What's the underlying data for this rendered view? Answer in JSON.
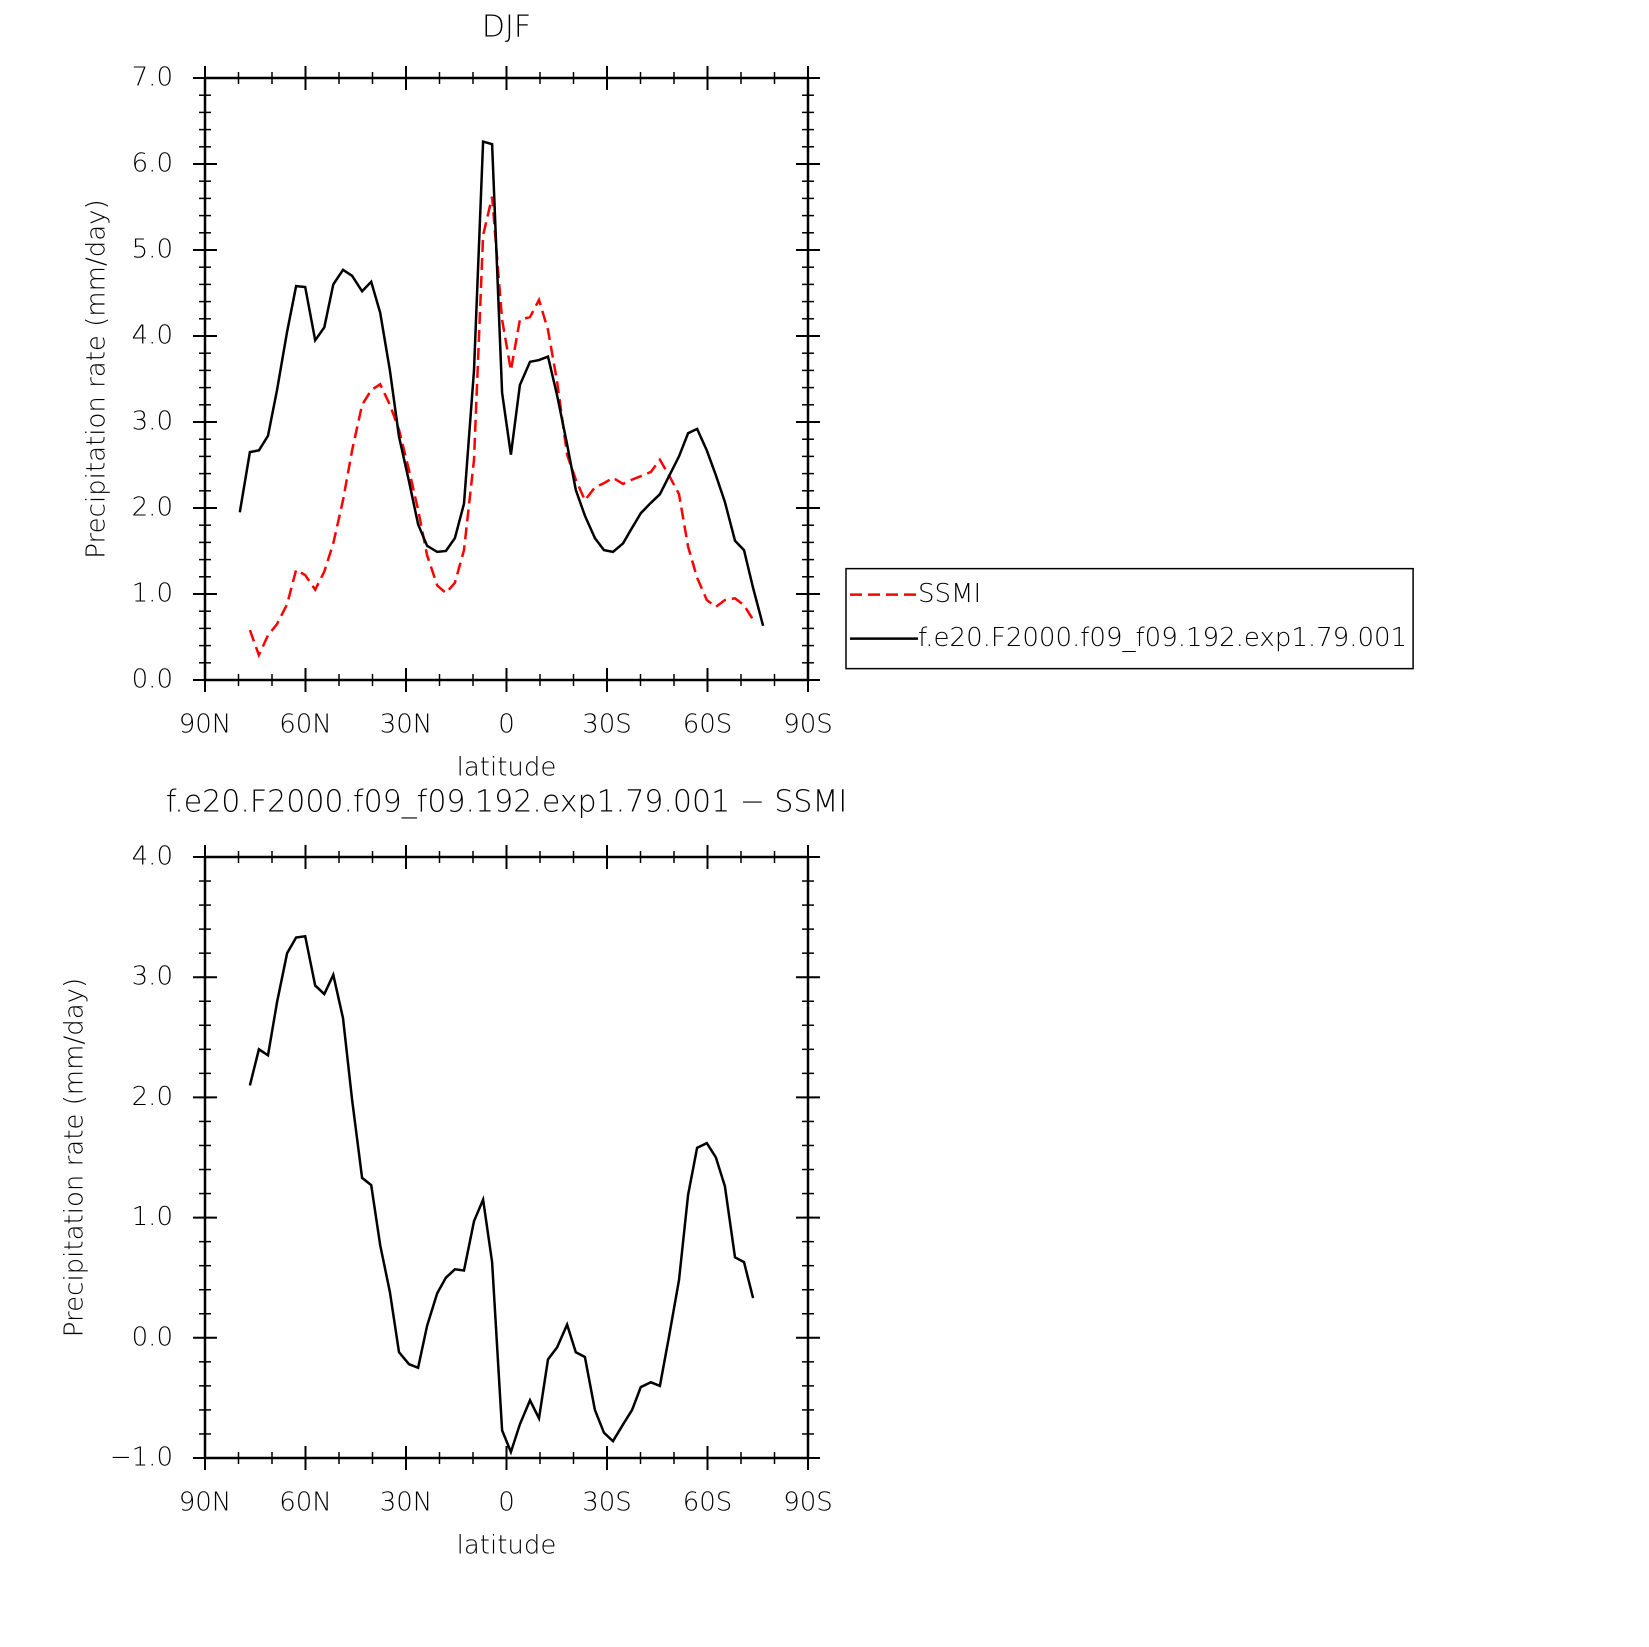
{
  "chart_data": [
    {
      "type": "line",
      "title": "DJF",
      "xlabel": "latitude",
      "ylabel": "Precipitation rate (mm/day)",
      "x": [
        79.6,
        76.6,
        73.9,
        71.2,
        68.5,
        65.5,
        62.8,
        60.1,
        57.1,
        54.4,
        51.7,
        48.8,
        46.1,
        43.1,
        40.4,
        37.7,
        34.8,
        32.1,
        29.1,
        26.4,
        23.7,
        20.7,
        18.1,
        15.4,
        12.7,
        9.7,
        7.0,
        4.3,
        1.3,
        -1.3,
        -4.0,
        -7.0,
        -9.7,
        -12.4,
        -15.1,
        -18.1,
        -20.7,
        -23.4,
        -26.4,
        -29.1,
        -31.8,
        -34.8,
        -37.5,
        -40.1,
        -43.1,
        -45.8,
        -48.5,
        -51.5,
        -54.2,
        -56.9,
        -59.8,
        -62.5,
        -65.2,
        -68.2,
        -70.9,
        -73.6,
        -76.6
      ],
      "series": [
        {
          "name": "SSMI",
          "color": "#ff0000",
          "line_style": "dashed",
          "values": [
            null,
            0.58,
            0.29,
            0.52,
            0.65,
            0.88,
            1.28,
            1.22,
            1.05,
            1.26,
            1.59,
            2.09,
            2.67,
            3.2,
            3.37,
            3.44,
            3.2,
            2.91,
            2.44,
            1.98,
            1.45,
            1.1,
            1.01,
            1.13,
            1.51,
            2.56,
            5.17,
            5.62,
            4.19,
            3.6,
            4.19,
            4.22,
            4.42,
            4.07,
            3.47,
            2.62,
            2.33,
            2.09,
            2.24,
            2.29,
            2.35,
            2.28,
            2.33,
            2.37,
            2.42,
            2.56,
            2.38,
            2.16,
            1.55,
            1.19,
            0.93,
            0.85,
            0.93,
            0.95,
            0.87,
            0.7,
            null
          ]
        },
        {
          "name": "f.e20.F2000.f09_f09.192.exp1.79.001",
          "color": "#000000",
          "line_style": "solid",
          "values": [
            1.95,
            2.65,
            2.67,
            2.84,
            3.37,
            4.05,
            4.58,
            4.57,
            3.95,
            4.1,
            4.6,
            4.77,
            4.7,
            4.52,
            4.63,
            4.27,
            3.6,
            2.83,
            2.31,
            1.81,
            1.56,
            1.49,
            1.5,
            1.65,
            2.05,
            3.6,
            6.26,
            6.23,
            3.34,
            2.62,
            3.43,
            3.7,
            3.72,
            3.76,
            3.31,
            2.74,
            2.21,
            1.91,
            1.65,
            1.51,
            1.49,
            1.59,
            1.77,
            1.94,
            2.06,
            2.16,
            2.37,
            2.6,
            2.87,
            2.92,
            2.67,
            2.38,
            2.07,
            1.62,
            1.51,
            1.07,
            0.63
          ]
        }
      ],
      "xlim": [
        90,
        -90
      ],
      "xticks": [
        {
          "value": 90,
          "label": "90N"
        },
        {
          "value": 60,
          "label": "60N"
        },
        {
          "value": 30,
          "label": "30N"
        },
        0,
        {
          "value": -30,
          "label": "30S"
        },
        {
          "value": -60,
          "label": "60S"
        },
        {
          "value": -90,
          "label": "90S"
        }
      ],
      "x_minor_step": 10,
      "ylim": [
        0,
        7
      ],
      "yticks": [
        {
          "value": 0,
          "label": "0.0"
        },
        {
          "value": 1,
          "label": "1.0"
        },
        {
          "value": 2,
          "label": "2.0"
        },
        {
          "value": 3,
          "label": "3.0"
        },
        {
          "value": 4,
          "label": "4.0"
        },
        {
          "value": 5,
          "label": "5.0"
        },
        {
          "value": 6,
          "label": "6.0"
        },
        {
          "value": 7,
          "label": "7.0"
        }
      ],
      "y_minor_step": 0.2,
      "legend": "outside right"
    },
    {
      "type": "line",
      "title": "f.e20.F2000.f09_f09.192.exp1.79.001 − SSMI",
      "xlabel": "latitude",
      "ylabel": "Precipitation rate (mm/day)",
      "x": [
        79.6,
        76.6,
        73.9,
        71.2,
        68.5,
        65.5,
        62.8,
        60.1,
        57.1,
        54.4,
        51.7,
        48.8,
        46.1,
        43.1,
        40.4,
        37.7,
        34.8,
        32.1,
        29.1,
        26.4,
        23.7,
        20.7,
        18.1,
        15.4,
        12.7,
        9.7,
        7.0,
        4.3,
        1.3,
        -1.3,
        -4.0,
        -7.0,
        -9.7,
        -12.4,
        -15.1,
        -18.1,
        -20.7,
        -23.4,
        -26.4,
        -29.1,
        -31.8,
        -34.8,
        -37.5,
        -40.1,
        -43.1,
        -45.8,
        -48.5,
        -51.5,
        -54.2,
        -56.9,
        -59.8,
        -62.5,
        -65.2,
        -68.2,
        -70.9,
        -73.6,
        -76.6
      ],
      "series": [
        {
          "color": "#000000",
          "line_style": "solid",
          "values": [
            null,
            2.1,
            2.4,
            2.35,
            2.79,
            3.2,
            3.33,
            3.34,
            2.93,
            2.86,
            3.02,
            2.66,
            1.98,
            1.33,
            1.27,
            0.77,
            0.38,
            -0.12,
            -0.22,
            -0.25,
            0.1,
            0.37,
            0.5,
            0.57,
            0.56,
            0.97,
            1.15,
            0.63,
            -0.77,
            -0.95,
            -0.72,
            -0.52,
            -0.67,
            -0.18,
            -0.08,
            0.11,
            -0.12,
            -0.16,
            -0.6,
            -0.79,
            -0.86,
            -0.72,
            -0.6,
            -0.41,
            -0.37,
            -0.4,
            0.01,
            0.48,
            1.19,
            1.58,
            1.62,
            1.5,
            1.26,
            0.67,
            0.63,
            0.33,
            null
          ]
        }
      ],
      "xlim": [
        90,
        -90
      ],
      "xticks": [
        {
          "value": 90,
          "label": "90N"
        },
        {
          "value": 60,
          "label": "60N"
        },
        {
          "value": 30,
          "label": "30N"
        },
        0,
        {
          "value": -30,
          "label": "30S"
        },
        {
          "value": -60,
          "label": "60S"
        },
        {
          "value": -90,
          "label": "90S"
        }
      ],
      "x_minor_step": 10,
      "ylim": [
        -1,
        4
      ],
      "yticks": [
        {
          "value": -1,
          "label": "−1.0"
        },
        {
          "value": 0,
          "label": "0.0"
        },
        {
          "value": 1,
          "label": "1.0"
        },
        {
          "value": 2,
          "label": "2.0"
        },
        {
          "value": 3,
          "label": "3.0"
        },
        {
          "value": 4,
          "label": "4.0"
        }
      ],
      "y_minor_step": 0.2
    }
  ]
}
